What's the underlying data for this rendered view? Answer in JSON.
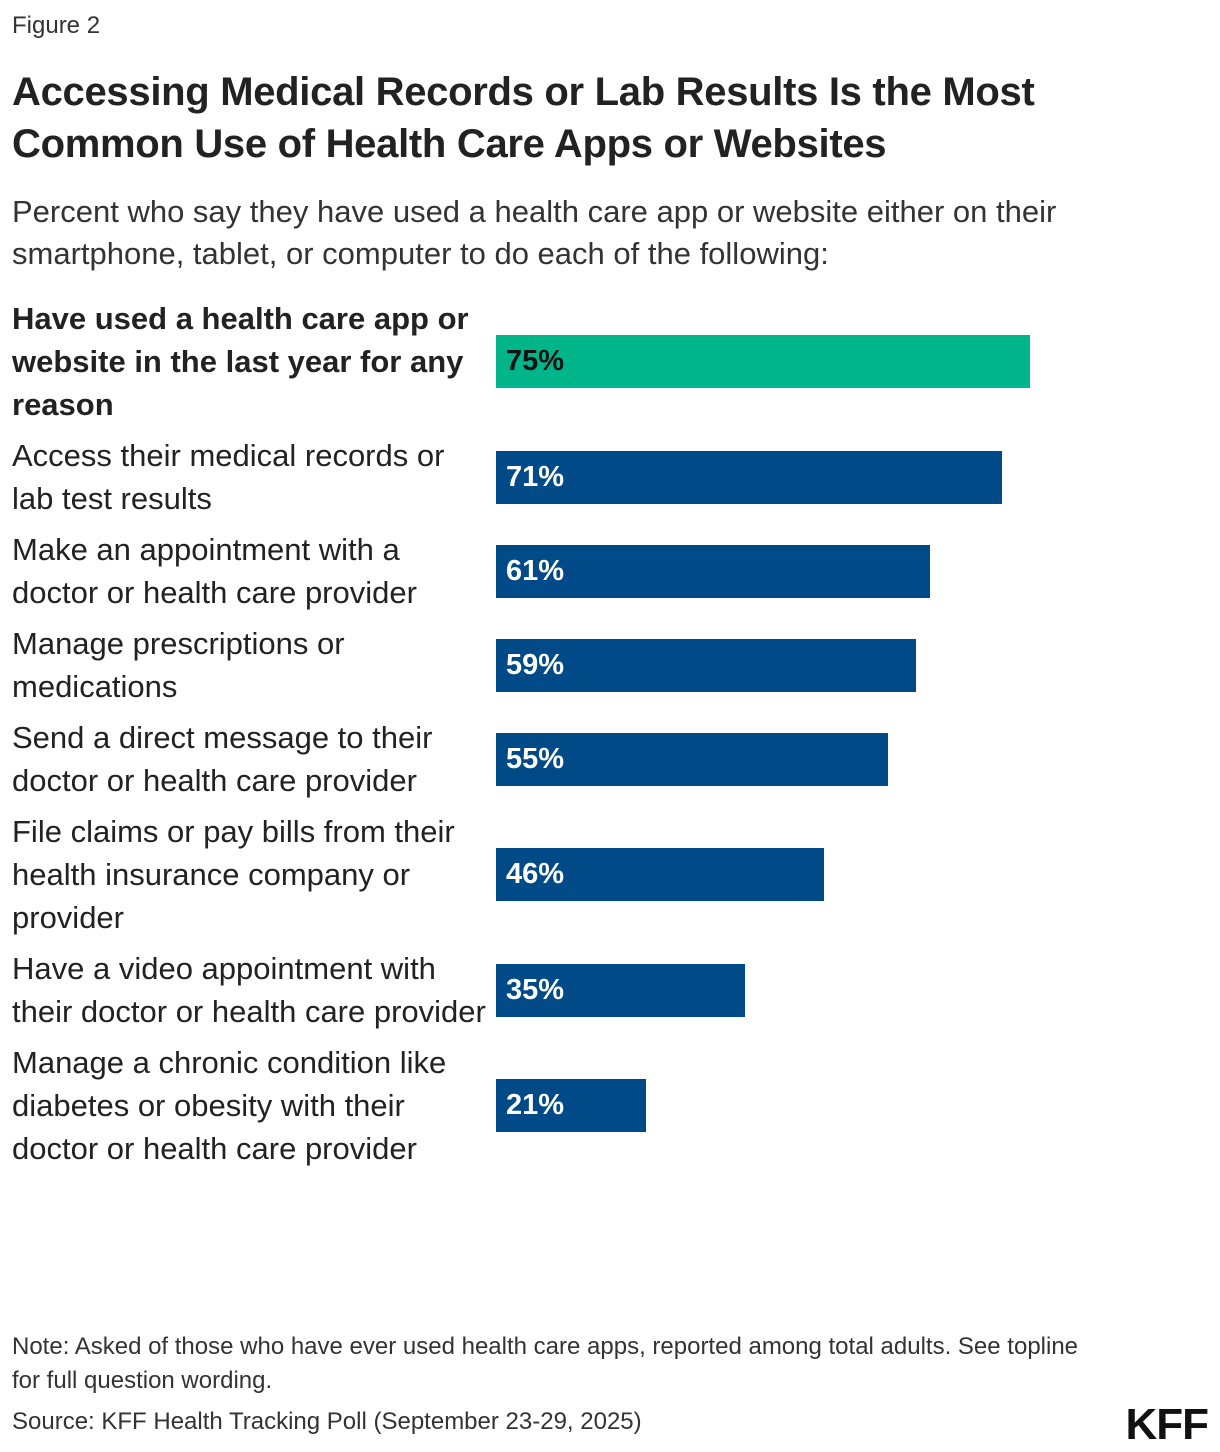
{
  "figure_label": "Figure 2",
  "chart_data": {
    "type": "bar",
    "orientation": "horizontal",
    "title": "Accessing Medical Records or Lab Results Is the Most Common Use of Health Care Apps or Websites",
    "subtitle": "Percent who say they have used a health care app or website either on their smartphone, tablet, or computer to do each of the following:",
    "categories": [
      "Have used a health care app or website in the last year for any reason",
      "Access their medical records or lab test results",
      "Make an appointment with a doctor or health care provider",
      "Manage prescriptions or medications",
      "Send a direct message to their doctor or health care provider",
      "File claims or pay bills from their health insurance company or provider",
      "Have a video appointment with their doctor or health care provider",
      "Manage a chronic condition like diabetes or obesity with their doctor or health care provider"
    ],
    "values": [
      75,
      71,
      61,
      59,
      55,
      46,
      35,
      21
    ],
    "data_labels": [
      "75%",
      "71%",
      "61%",
      "59%",
      "55%",
      "46%",
      "35%",
      "21%"
    ],
    "xlim": [
      0,
      100
    ],
    "grid": false,
    "colors": {
      "highlight": "#00b58a",
      "default": "#004a87"
    }
  },
  "note": "Note: Asked of those who have ever used health care apps, reported among total adults. See topline for full question wording.",
  "source": "Source: KFF Health Tracking Poll (September 23-29, 2025)",
  "logo": "KFF"
}
